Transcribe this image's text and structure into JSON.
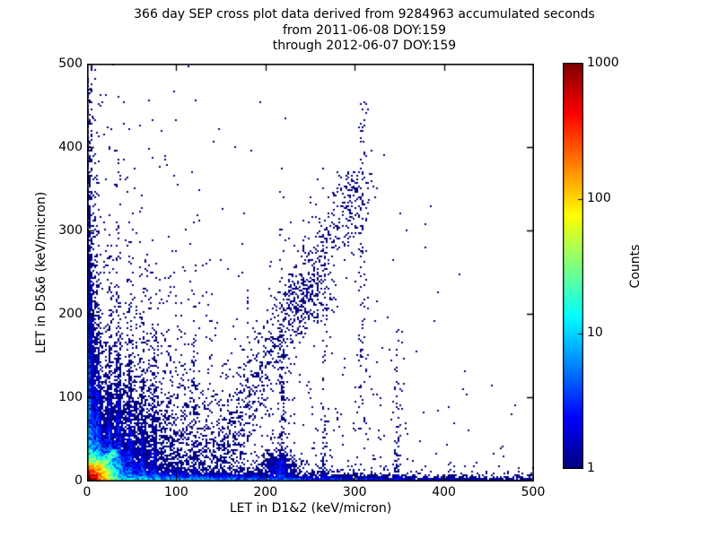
{
  "title": {
    "line1": "366 day SEP cross plot data derived from 9284963 accumulated seconds",
    "line2": "from 2011-06-08 DOY:159",
    "line3": "through 2012-06-07 DOY:159"
  },
  "chart_data": {
    "type": "scatter",
    "subtype": "2d-density-crossplot",
    "title": "366 day SEP cross plot data derived from 9284963 accumulated seconds\nfrom 2011-06-08 DOY:159\nthrough 2012-06-07 DOY:159",
    "xlabel": "LET in D1&2 (keV/micron)",
    "ylabel": "LET in D5&6 (keV/micron)",
    "xlim": [
      0,
      500
    ],
    "ylim": [
      0,
      500
    ],
    "x_ticks": [
      0,
      100,
      200,
      300,
      400,
      500
    ],
    "y_ticks": [
      0,
      100,
      200,
      300,
      400,
      500
    ],
    "grid": false,
    "frame_color": "#000000",
    "background": "#ffffff",
    "point_color_low": "#00007f",
    "colorbar": {
      "label": "Counts",
      "scale": "log",
      "min": 1,
      "max": 1000,
      "ticks": [
        1,
        10,
        100,
        1000
      ],
      "colormap": "jet",
      "position": "right"
    },
    "density_components": [
      {
        "kind": "radial-exp",
        "name": "origin-hot-core",
        "center": [
          2,
          2
        ],
        "scale": 6,
        "amplitude": 1500
      },
      {
        "kind": "band-x",
        "name": "band-along-x-axis",
        "y_scale": 3.5,
        "x_decay": 200,
        "amplitude": 20
      },
      {
        "kind": "band-y",
        "name": "band-along-y-axis",
        "x_scale": 3,
        "y_decay": 150,
        "amplitude": 14
      },
      {
        "kind": "aniso-exp",
        "name": "lower-left-haze",
        "x_scale": 58,
        "y_scale": 58,
        "amplitude": 4
      },
      {
        "kind": "aniso-exp",
        "name": "sparse-far-field",
        "x_scale": 150,
        "y_scale": 130,
        "amplitude": 0.12
      },
      {
        "kind": "diag",
        "name": "cyan-diagonal-finger",
        "from": [
          6,
          8
        ],
        "to": [
          30,
          34
        ],
        "width": 3,
        "amplitude": 18
      },
      {
        "kind": "diag",
        "name": "fountain-ridge",
        "from": [
          150,
          40
        ],
        "to": [
          300,
          350
        ],
        "width": 20,
        "amplitude": 0.2
      },
      {
        "kind": "gauss",
        "name": "mid-cluster",
        "center": [
          245,
          215
        ],
        "sx": 20,
        "sy": 28,
        "amplitude": 0.3
      },
      {
        "kind": "gauss",
        "name": "bottom-hump",
        "center": [
          215,
          18
        ],
        "sx": 15,
        "sy": 12,
        "amplitude": 1.5
      },
      {
        "kind": "vstreak",
        "x": 12,
        "width": 2.5,
        "y_decay": 85,
        "amplitude": 3
      },
      {
        "kind": "vstreak",
        "x": 25,
        "width": 2.5,
        "y_decay": 75,
        "amplitude": 2.2
      },
      {
        "kind": "vstreak",
        "x": 35,
        "width": 2.5,
        "y_decay": 80,
        "amplitude": 2.5
      },
      {
        "kind": "vstreak",
        "x": 48,
        "width": 2.5,
        "y_decay": 70,
        "amplitude": 2
      },
      {
        "kind": "vstreak",
        "x": 62,
        "width": 2.5,
        "y_decay": 65,
        "amplitude": 1.6
      },
      {
        "kind": "vstreak",
        "x": 75,
        "width": 2.5,
        "y_decay": 60,
        "amplitude": 1.4
      },
      {
        "kind": "vstreak",
        "x": 120,
        "width": 3,
        "y_decay": 70,
        "amplitude": 0.5
      },
      {
        "kind": "vstreak",
        "x": 218,
        "width": 3,
        "y_decay": 90,
        "amplitude": 0.9
      },
      {
        "kind": "vstreak",
        "x": 265,
        "width": 3,
        "y_decay": 80,
        "amplitude": 0.5
      },
      {
        "kind": "vstreak",
        "x": 347,
        "width": 3,
        "y_decay": 60,
        "amplitude": 0.5
      },
      {
        "kind": "vstreak-range",
        "name": "vertical-chain-at-307",
        "x": 307,
        "width": 4,
        "y_range": [
          60,
          460
        ],
        "amplitude": 0.22
      }
    ],
    "notable_points": [
      [
        4,
        470
      ],
      [
        6,
        437
      ],
      [
        31,
        396
      ],
      [
        53,
        351
      ],
      [
        20,
        302
      ],
      [
        110,
        302
      ],
      [
        152,
        326
      ],
      [
        205,
        258
      ],
      [
        312,
        452
      ],
      [
        306,
        428
      ],
      [
        309,
        407
      ],
      [
        318,
        396
      ],
      [
        332,
        391
      ],
      [
        308,
        381
      ],
      [
        299,
        370
      ],
      [
        296,
        352
      ],
      [
        315,
        337
      ],
      [
        304,
        329
      ],
      [
        385,
        329
      ],
      [
        357,
        300
      ],
      [
        260,
        310
      ],
      [
        228,
        310
      ],
      [
        250,
        340
      ],
      [
        275,
        345
      ],
      [
        436,
        22
      ],
      [
        466,
        30
      ]
    ]
  }
}
